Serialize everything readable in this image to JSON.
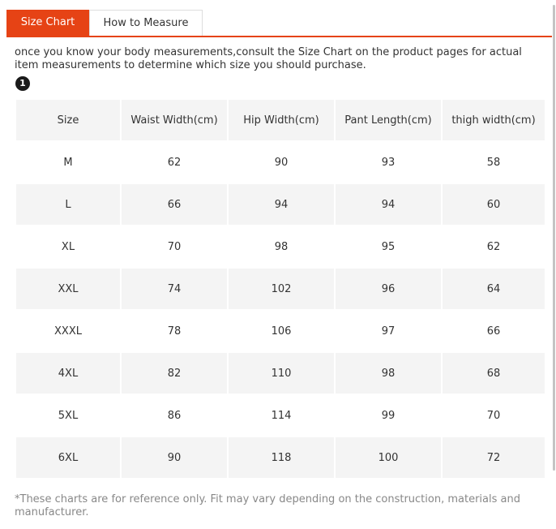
{
  "tabs": [
    {
      "label": "Size Chart",
      "active": true
    },
    {
      "label": "How to Measure",
      "active": false
    }
  ],
  "intro_text": "once you know your body measurements,consult the Size Chart on the product pages for actual item measurements to determine which size you should purchase.",
  "step_number": "1",
  "table": {
    "headers": [
      "Size",
      "Waist Width(cm)",
      "Hip Width(cm)",
      "Pant Length(cm)",
      "thigh width(cm)"
    ],
    "rows": [
      [
        "M",
        "62",
        "90",
        "93",
        "58"
      ],
      [
        "L",
        "66",
        "94",
        "94",
        "60"
      ],
      [
        "XL",
        "70",
        "98",
        "95",
        "62"
      ],
      [
        "XXL",
        "74",
        "102",
        "96",
        "64"
      ],
      [
        "XXXL",
        "78",
        "106",
        "97",
        "66"
      ],
      [
        "4XL",
        "82",
        "110",
        "98",
        "68"
      ],
      [
        "5XL",
        "86",
        "114",
        "99",
        "70"
      ],
      [
        "6XL",
        "90",
        "118",
        "100",
        "72"
      ]
    ]
  },
  "footnote": "*These charts are for reference only. Fit may vary depending on the construction, materials and manufacturer.",
  "colors": {
    "accent": "#e64315",
    "row_shade": "#f4f4f4",
    "text": "#333333",
    "muted_text": "#888888"
  }
}
